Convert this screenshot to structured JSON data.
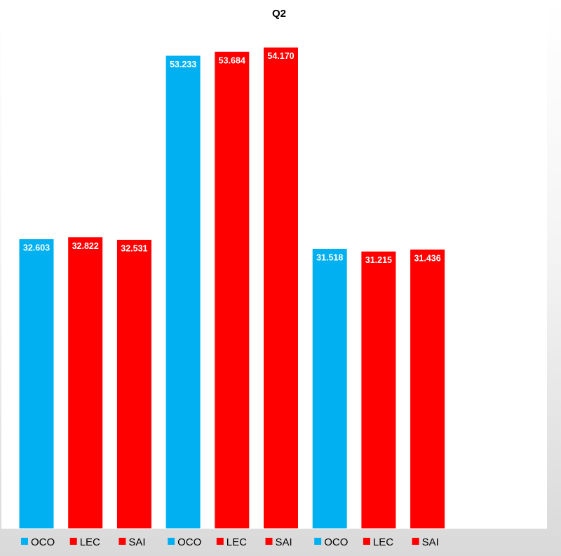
{
  "chart_data": {
    "type": "bar",
    "title": "Q2",
    "xlabel": "",
    "ylabel": "",
    "categories": [
      "OCO",
      "LEC",
      "SAI",
      "OCO",
      "LEC",
      "SAI",
      "OCO",
      "LEC",
      "SAI"
    ],
    "values": [
      32.603,
      32.822,
      32.531,
      53.233,
      53.684,
      54.17,
      31.518,
      31.215,
      31.436
    ],
    "value_labels": [
      "32.603",
      "32.822",
      "32.531",
      "53.233",
      "53.684",
      "54.170",
      "31.518",
      "31.215",
      "31.436"
    ],
    "ylim": [
      0,
      57.1
    ],
    "grid": false,
    "legend": {
      "placement": "bottom",
      "entries": [
        "OCO",
        "LEC",
        "SAI",
        "OCO",
        "LEC",
        "SAI",
        "OCO",
        "LEC",
        "SAI"
      ]
    },
    "colors": {
      "OCO": "#00B0F0",
      "LEC": "#FF0000",
      "SAI": "#FF0000"
    },
    "plot_background": "#ffffff"
  }
}
